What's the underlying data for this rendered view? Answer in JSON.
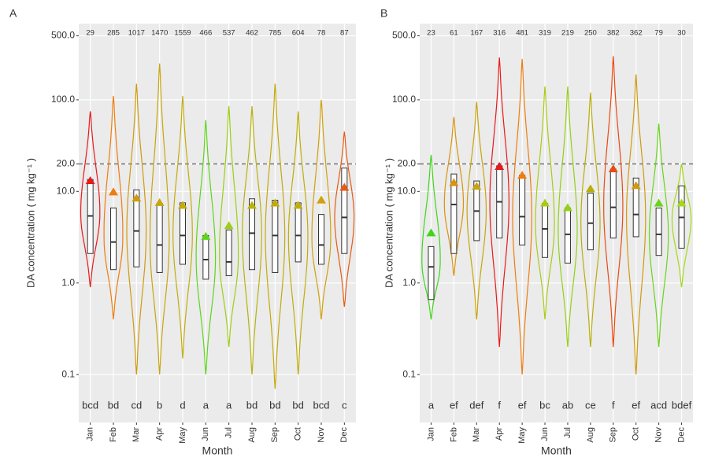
{
  "chart_data": [
    {
      "type": "violin",
      "panel": "A",
      "x_label": "Month",
      "y_label": "DA concentration ( mg kg⁻¹ )",
      "log_scale": true,
      "grid": true,
      "hline": 20,
      "ylim": [
        0.03,
        680
      ],
      "yticks": [
        0.1,
        {
          "value": 1,
          "label": "1.0"
        },
        {
          "value": 10,
          "label": "10.0"
        },
        {
          "value": 20,
          "label": "20.0"
        },
        {
          "value": 100,
          "label": "100.0"
        },
        {
          "value": 500,
          "label": "500.0"
        }
      ],
      "categories": [
        "Jan",
        "Feb",
        "Mar",
        "Apr",
        "May",
        "Jun",
        "Jul",
        "Aug",
        "Sep",
        "Oct",
        "Nov",
        "Dec"
      ],
      "n": [
        29,
        285,
        1017,
        1470,
        1559,
        466,
        537,
        462,
        785,
        604,
        78,
        87
      ],
      "letters": [
        "bcd",
        "bd",
        "cd",
        "b",
        "d",
        "a",
        "a",
        "bd",
        "bd",
        "bd",
        "bcd",
        "c"
      ],
      "colors": [
        "#e8191b",
        "#ee7d0f",
        "#d19a0c",
        "#c9a50b",
        "#c2ad0a",
        "#5fd41c",
        "#9ccf16",
        "#b7b20c",
        "#c4a90a",
        "#bfae0a",
        "#d1a00c",
        "#e85a12"
      ],
      "violin_min": [
        0.9,
        0.4,
        0.1,
        0.1,
        0.15,
        0.1,
        0.2,
        0.1,
        0.07,
        0.1,
        0.4,
        0.55
      ],
      "violin_max": [
        75,
        110,
        150,
        250,
        110,
        60,
        85,
        85,
        150,
        75,
        100,
        45
      ],
      "q1": [
        2.1,
        1.4,
        1.5,
        1.3,
        1.6,
        1.1,
        1.2,
        1.4,
        1.3,
        1.7,
        1.6,
        2.1
      ],
      "median": [
        5.4,
        2.8,
        3.7,
        2.6,
        3.3,
        1.8,
        1.7,
        3.5,
        3.3,
        3.3,
        2.6,
        5.2
      ],
      "q3": [
        13.5,
        6.6,
        10.4,
        7.4,
        7.5,
        3.3,
        3.8,
        8.3,
        8,
        7.5,
        5.6,
        18
      ],
      "mean": [
        13,
        9.8,
        8.4,
        7.5,
        7,
        3.2,
        4.2,
        7,
        7.4,
        7,
        8,
        11
      ]
    },
    {
      "type": "violin",
      "panel": "B",
      "x_label": "Month",
      "y_label": "DA concentration ( mg kg⁻¹ )",
      "log_scale": true,
      "grid": true,
      "hline": 20,
      "ylim": [
        0.03,
        680
      ],
      "yticks": [
        0.1,
        {
          "value": 1,
          "label": "1.0"
        },
        {
          "value": 10,
          "label": "10.0"
        },
        {
          "value": 20,
          "label": "20.0"
        },
        {
          "value": 100,
          "label": "100.0"
        },
        {
          "value": 500,
          "label": "500.0"
        }
      ],
      "categories": [
        "Jan",
        "Feb",
        "Mar",
        "Apr",
        "May",
        "Jun",
        "Jul",
        "Aug",
        "Sep",
        "Oct",
        "Nov",
        "Dec"
      ],
      "n": [
        23,
        61,
        167,
        316,
        481,
        319,
        219,
        250,
        382,
        362,
        79,
        30
      ],
      "letters": [
        "a",
        "ef",
        "def",
        "f",
        "ef",
        "bc",
        "ab",
        "ce",
        "f",
        "ef",
        "acd",
        "bdef"
      ],
      "colors": [
        "#3fd61a",
        "#d9930c",
        "#c9a50b",
        "#e8191b",
        "#ee7d0f",
        "#a8cc14",
        "#93d115",
        "#b9ae0a",
        "#ea4a12",
        "#d19a0c",
        "#6ad41a",
        "#a6d81a"
      ],
      "violin_min": [
        0.4,
        1.2,
        0.4,
        0.2,
        0.1,
        0.4,
        0.2,
        0.2,
        0.2,
        0.1,
        0.2,
        0.9
      ],
      "violin_max": [
        25,
        65,
        95,
        290,
        280,
        140,
        140,
        120,
        300,
        190,
        55,
        20
      ],
      "q1": [
        0.66,
        2.1,
        2.9,
        3.1,
        2.6,
        1.9,
        1.65,
        2.3,
        3.1,
        3.2,
        2,
        2.4
      ],
      "median": [
        1.5,
        7.2,
        6.1,
        7.7,
        5.3,
        3.9,
        3.4,
        4.5,
        6.7,
        5.6,
        3.4,
        5.2
      ],
      "q3": [
        2.5,
        15.5,
        13,
        19,
        15,
        7.4,
        6.6,
        9.6,
        17.5,
        14,
        6.6,
        11.5
      ],
      "mean": [
        3.5,
        12.4,
        11.3,
        18.6,
        14.9,
        7.4,
        6.6,
        10.6,
        17.5,
        11.5,
        7.4,
        7.4
      ]
    }
  ]
}
